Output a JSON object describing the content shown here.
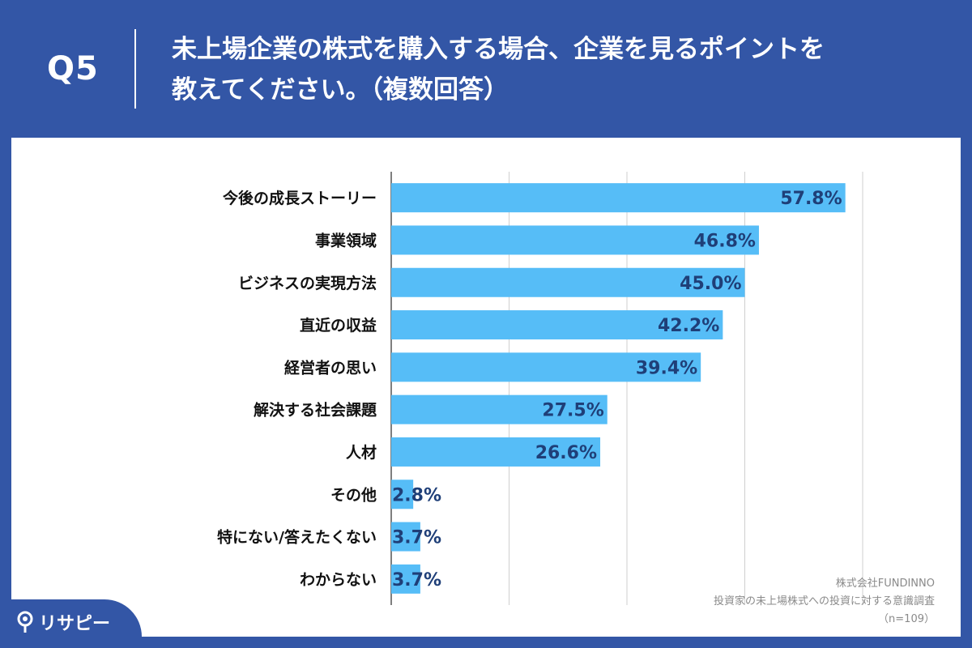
{
  "header": {
    "question_number": "Q5",
    "title_line1": "未上場企業の株式を購入する場合、企業を見るポイントを",
    "title_line2": "教えてください。（複数回答）"
  },
  "credit": {
    "line1": "株式会社FUNDINNO",
    "line2": "投資家の未上場株式への投資に対する意識調査",
    "line3": "（n=109）"
  },
  "logo": {
    "text": "リサピー",
    "icon": "pin-icon"
  },
  "colors": {
    "background": "#3356a6",
    "bar": "#56bdf7",
    "value_label": "#1f3f78",
    "grid": "#cfcfcf"
  },
  "chart_data": {
    "type": "bar",
    "orientation": "horizontal",
    "categories": [
      "今後の成長ストーリー",
      "事業領域",
      "ビジネスの実現方法",
      "直近の収益",
      "経営者の思い",
      "解決する社会課題",
      "人材",
      "その他",
      "特にない/答えたくない",
      "わからない"
    ],
    "values": [
      57.8,
      46.8,
      45.0,
      42.2,
      39.4,
      27.5,
      26.6,
      2.8,
      3.7,
      3.7
    ],
    "value_labels": [
      "57.8%",
      "46.8%",
      "45.0%",
      "42.2%",
      "39.4%",
      "27.5%",
      "26.6%",
      "2.8%",
      "3.7%",
      "3.7%"
    ],
    "unit": "%",
    "xlim": [
      0,
      60
    ],
    "gridline_step": 15,
    "grid": true,
    "title": "",
    "xlabel": "",
    "ylabel": ""
  }
}
